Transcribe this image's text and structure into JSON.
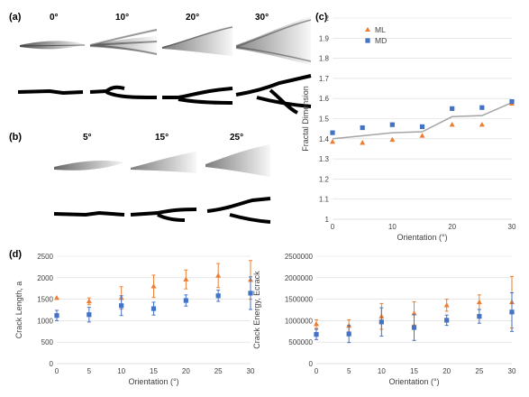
{
  "panels": {
    "a": {
      "label": "(a)",
      "angles": [
        "0°",
        "10°",
        "20°",
        "30°"
      ]
    },
    "b": {
      "label": "(b)",
      "angles": [
        "5°",
        "15°",
        "25°"
      ]
    },
    "c": {
      "label": "(c)"
    },
    "d": {
      "label": "(d)"
    }
  },
  "colors": {
    "ML": "#ed7d31",
    "MD": "#4472c4",
    "line": "#a5a5a5",
    "grid": "#d9d9d9"
  },
  "chart_data": [
    {
      "id": "c",
      "type": "scatter",
      "xlabel": "Orientation (°)",
      "ylabel": "Fractal Dimension",
      "xlim": [
        0,
        30
      ],
      "ylim": [
        1,
        2
      ],
      "xticks": [
        "0",
        "10",
        "20",
        "30"
      ],
      "yticks": [
        "1",
        "1.1",
        "1.2",
        "1.3",
        "1.4",
        "1.5",
        "1.6",
        "1.7",
        "1.8",
        "1.9",
        "2"
      ],
      "grid": "horizontal",
      "legend": "top-left",
      "x": [
        0,
        5,
        10,
        15,
        20,
        25,
        30
      ],
      "series": [
        {
          "name": "ML",
          "marker": "triangle",
          "values": [
            1.385,
            1.38,
            1.395,
            1.415,
            1.47,
            1.47,
            1.575
          ]
        },
        {
          "name": "MD",
          "marker": "square",
          "values": [
            1.43,
            1.455,
            1.47,
            1.46,
            1.55,
            1.555,
            1.585
          ]
        }
      ],
      "line_values": [
        1.4,
        1.415,
        1.43,
        1.435,
        1.51,
        1.515,
        1.58
      ]
    },
    {
      "id": "d-left",
      "type": "scatter",
      "xlabel": "Orientation (°)",
      "ylabel": "Crack Length, a",
      "xlim": [
        0,
        30
      ],
      "ylim": [
        0,
        2500
      ],
      "xticks": [
        "0",
        "5",
        "10",
        "15",
        "20",
        "25",
        "30"
      ],
      "yticks": [
        "0",
        "500",
        "1000",
        "1500",
        "2000",
        "2500"
      ],
      "grid": "horizontal",
      "x": [
        0,
        5,
        10,
        15,
        20,
        25,
        30
      ],
      "series": [
        {
          "name": "ML",
          "marker": "triangle",
          "values": [
            1530,
            1450,
            1530,
            1800,
            1960,
            2050,
            1950
          ],
          "errors": [
            0,
            80,
            260,
            260,
            220,
            280,
            450
          ]
        },
        {
          "name": "MD",
          "marker": "square",
          "values": [
            1120,
            1140,
            1350,
            1280,
            1470,
            1580,
            1640
          ],
          "errors": [
            120,
            170,
            230,
            150,
            130,
            130,
            380
          ]
        }
      ]
    },
    {
      "id": "d-right",
      "type": "scatter",
      "xlabel": "Orientation (°)",
      "ylabel": "Crack Energy, Ecrack",
      "xlim": [
        0,
        30
      ],
      "ylim": [
        0,
        2500000
      ],
      "xticks": [
        "0",
        "5",
        "10",
        "15",
        "20",
        "25",
        "30"
      ],
      "yticks": [
        "0",
        "500000",
        "1000000",
        "1500000",
        "2000000",
        "2500000"
      ],
      "grid": "horizontal",
      "x": [
        0,
        5,
        10,
        15,
        20,
        25,
        30
      ],
      "series": [
        {
          "name": "ML",
          "marker": "triangle",
          "values": [
            920000,
            880000,
            1100000,
            1170000,
            1360000,
            1430000,
            1430000
          ],
          "errors": [
            100000,
            140000,
            300000,
            270000,
            140000,
            170000,
            600000
          ]
        },
        {
          "name": "MD",
          "marker": "square",
          "values": [
            680000,
            690000,
            970000,
            840000,
            1010000,
            1100000,
            1200000
          ],
          "errors": [
            120000,
            200000,
            330000,
            300000,
            120000,
            160000,
            450000
          ]
        }
      ]
    }
  ]
}
